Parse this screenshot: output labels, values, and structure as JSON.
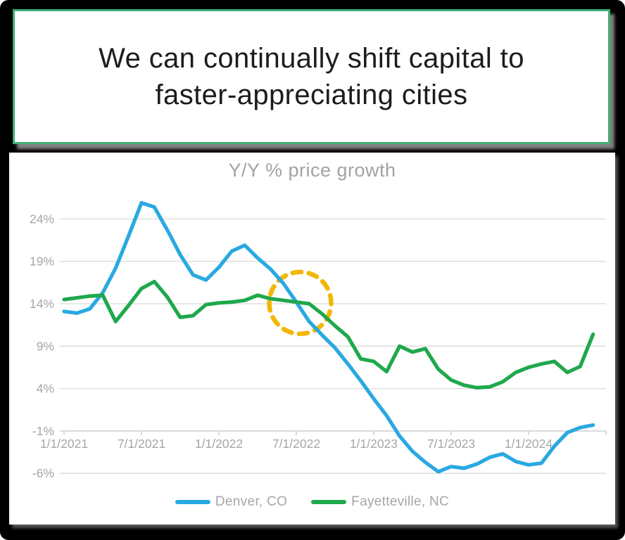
{
  "slide": {
    "title_line1": "We can continually shift capital to",
    "title_line2": "faster-appreciating cities",
    "title_border_color": "#3eae74"
  },
  "chart": {
    "title": "Y/Y % price growth",
    "legend": [
      {
        "label": "Denver, CO",
        "color": "#29a9e1"
      },
      {
        "label": "Fayetteville, NC",
        "color": "#1fa84c"
      }
    ]
  },
  "chart_data": {
    "type": "line",
    "title": "Y/Y % price growth",
    "x_start": "1/1/2021",
    "x_interval": "monthly",
    "x_tick_labels": [
      "1/1/2021",
      "7/1/2021",
      "1/1/2022",
      "7/1/2022",
      "1/1/2023",
      "7/1/2023",
      "1/1/2024"
    ],
    "x_tick_month_positions": [
      0,
      6,
      12,
      18,
      24,
      30,
      36
    ],
    "y_ticks": [
      24,
      19,
      14,
      9,
      4,
      -1,
      -6
    ],
    "y_tick_labels": [
      "24%",
      "19%",
      "14%",
      "9%",
      "4%",
      "-1%",
      "-6%"
    ],
    "ylim": [
      -8.3,
      27.9
    ],
    "axis_crosses_at": -1,
    "grid": "horizontal-only",
    "legend_position": "bottom-center",
    "series": [
      {
        "name": "Denver, CO",
        "color": "#29a9e1",
        "values": [
          13.1,
          12.9,
          13.4,
          15.3,
          18.2,
          22.0,
          25.9,
          25.4,
          22.7,
          19.8,
          17.4,
          16.8,
          18.3,
          20.2,
          20.9,
          19.4,
          18.1,
          16.4,
          14.2,
          11.9,
          10.3,
          8.8,
          6.9,
          4.9,
          2.8,
          0.8,
          -1.6,
          -3.4,
          -4.7,
          -5.8,
          -5.2,
          -5.4,
          -4.9,
          -4.1,
          -3.7,
          -4.6,
          -5.0,
          -4.8,
          -2.8,
          -1.2,
          -0.6,
          -0.3
        ]
      },
      {
        "name": "Fayetteville, NC",
        "color": "#1fa84c",
        "values": [
          14.5,
          14.7,
          14.9,
          15.0,
          11.9,
          13.8,
          15.8,
          16.6,
          14.8,
          12.4,
          12.6,
          13.9,
          14.1,
          14.2,
          14.4,
          15.0,
          14.6,
          14.4,
          14.2,
          14.0,
          12.8,
          11.4,
          10.1,
          7.5,
          7.2,
          6.0,
          9.0,
          8.3,
          8.7,
          6.3,
          5.0,
          4.4,
          4.1,
          4.2,
          4.8,
          5.9,
          6.5,
          6.9,
          7.2,
          5.9,
          6.6,
          10.4
        ]
      }
    ],
    "annotation": {
      "shape": "dashed-circle",
      "color": "#f2b705",
      "center_month_index": 18.3,
      "center_value": 14.1,
      "meaning": "highlights crossover of the two lines near 7/1/2022"
    }
  },
  "style": {
    "grid_color": "#dadada",
    "axis_color": "#c9c9c9",
    "tick_label_color": "#a6a6a6",
    "chart_title_color": "#a3a3a3",
    "background": "#000000",
    "card_background": "#ffffff"
  }
}
